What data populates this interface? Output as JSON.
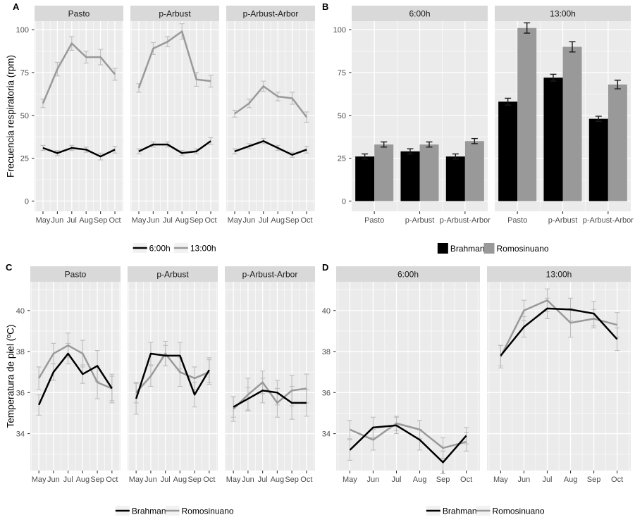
{
  "panels": {
    "a": {
      "letter": "A",
      "y_axis_label": "Frecuencia respiratoria (rpm)"
    },
    "b": {
      "letter": "B"
    },
    "c": {
      "letter": "C",
      "y_axis_label": "Temperatura de piel (ºC)"
    },
    "d": {
      "letter": "D"
    }
  },
  "colors": {
    "black_series": "#000000",
    "gray_series": "#999999",
    "panel_bg": "#EBEBEB",
    "strip_bg": "#D9D9D9",
    "gridline": "#FFFFFF",
    "tick_text": "#4D4D4D",
    "strip_text": "#1A1A1A",
    "errbar_line_charts": "#BDBDBD",
    "errbar_bar_charts": "#1A1A1A",
    "legend_key_bg": "#F2F2F2",
    "axis_tick": "#333333"
  },
  "chart_data": [
    {
      "panel": "A",
      "type": "line",
      "title": "",
      "ylabel": "Frecuencia respiratoria (rpm)",
      "x": [
        "May",
        "Jun",
        "Jul",
        "Aug",
        "Sep",
        "Oct"
      ],
      "yticks": [
        0,
        25,
        50,
        75,
        100
      ],
      "ylim": [
        -6,
        105
      ],
      "grid": true,
      "legend_position": "bottom",
      "legend": [
        "6:00h",
        "13:00h"
      ],
      "legend_colors": [
        "#000000",
        "#999999"
      ],
      "facets": [
        {
          "label": "Pasto",
          "series": [
            {
              "name": "6:00h",
              "color": "#000000",
              "values": [
                31,
                28,
                31,
                30,
                26,
                30
              ],
              "err": [
                1.5,
                1.5,
                1.5,
                1.5,
                2,
                2
              ]
            },
            {
              "name": "13:00h",
              "color": "#999999",
              "values": [
                57,
                77,
                92,
                84,
                84,
                74
              ],
              "err": [
                2.5,
                4,
                4,
                3.5,
                4.5,
                3.5
              ]
            }
          ]
        },
        {
          "label": "p-Arbust",
          "series": [
            {
              "name": "6:00h",
              "color": "#000000",
              "values": [
                29,
                33,
                33,
                28,
                29,
                35
              ],
              "err": [
                1.5,
                1.5,
                1.5,
                1.5,
                1.5,
                2
              ]
            },
            {
              "name": "13:00h",
              "color": "#999999",
              "values": [
                66,
                89,
                93,
                99,
                71,
                70
              ],
              "err": [
                2.5,
                3.5,
                3,
                4.5,
                4,
                3.5
              ]
            }
          ]
        },
        {
          "label": "p-Arbust-Arbor",
          "series": [
            {
              "name": "6:00h",
              "color": "#000000",
              "values": [
                29,
                32,
                35,
                31,
                27,
                30
              ],
              "err": [
                1.5,
                1.5,
                1.5,
                1.5,
                1.5,
                2
              ]
            },
            {
              "name": "13:00h",
              "color": "#999999",
              "values": [
                51,
                57,
                67,
                61,
                60,
                49
              ],
              "err": [
                2,
                2.5,
                3,
                2.5,
                3.5,
                3
              ]
            }
          ]
        }
      ]
    },
    {
      "panel": "B",
      "type": "bar",
      "title": "",
      "ylabel": "",
      "categories": [
        "Pasto",
        "p-Arbust",
        "p-Arbust-Arbor"
      ],
      "yticks": [
        0,
        25,
        50,
        75,
        100
      ],
      "ylim": [
        -6,
        105
      ],
      "grid": true,
      "legend_position": "bottom",
      "legend": [
        "Brahman",
        "Romosinuano"
      ],
      "legend_colors": [
        "#000000",
        "#999999"
      ],
      "facets": [
        {
          "label": "6:00h",
          "series": [
            {
              "name": "Brahman",
              "color": "#000000",
              "values": [
                26,
                29,
                26
              ],
              "err": [
                1.5,
                1.5,
                1.5
              ]
            },
            {
              "name": "Romosinuano",
              "color": "#999999",
              "values": [
                33,
                33,
                35
              ],
              "err": [
                1.5,
                1.5,
                1.5
              ]
            }
          ]
        },
        {
          "label": "13:00h",
          "series": [
            {
              "name": "Brahman",
              "color": "#000000",
              "values": [
                58,
                72,
                48
              ],
              "err": [
                2,
                2,
                1.5
              ]
            },
            {
              "name": "Romosinuano",
              "color": "#999999",
              "values": [
                101,
                90,
                68
              ],
              "err": [
                3,
                3,
                2.5
              ]
            }
          ]
        }
      ]
    },
    {
      "panel": "C",
      "type": "line",
      "title": "",
      "ylabel": "Temperatura de piel (ºC)",
      "x": [
        "May",
        "Jun",
        "Jul",
        "Aug",
        "Sep",
        "Oct"
      ],
      "yticks": [
        34,
        36,
        38,
        40
      ],
      "ylim": [
        32.2,
        41.4
      ],
      "grid": true,
      "legend_position": "bottom",
      "legend": [
        "Brahman",
        "Romosinuano"
      ],
      "legend_colors": [
        "#000000",
        "#999999"
      ],
      "facets": [
        {
          "label": "Pasto",
          "series": [
            {
              "name": "Brahman",
              "color": "#000000",
              "values": [
                35.4,
                37.0,
                37.9,
                36.9,
                37.3,
                36.2
              ],
              "err": [
                0.5,
                0.4,
                0.5,
                0.45,
                0.75,
                0.6
              ]
            },
            {
              "name": "Romosinuano",
              "color": "#999999",
              "values": [
                36.7,
                37.9,
                38.3,
                37.9,
                36.5,
                36.2
              ],
              "err": [
                0.55,
                0.5,
                0.6,
                0.65,
                0.8,
                0.7
              ]
            }
          ]
        },
        {
          "label": "p-Arbust",
          "series": [
            {
              "name": "Brahman",
              "color": "#000000",
              "values": [
                35.7,
                37.9,
                37.8,
                37.8,
                35.9,
                37.1
              ],
              "err": [
                0.75,
                0.55,
                0.5,
                0.65,
                0.6,
                0.6
              ]
            },
            {
              "name": "Romosinuano",
              "color": "#999999",
              "values": [
                36.0,
                36.8,
                37.9,
                37.0,
                36.7,
                37.0
              ],
              "err": [
                0.5,
                0.5,
                0.6,
                0.7,
                0.55,
                0.6
              ]
            }
          ]
        },
        {
          "label": "p-Arbust-Arbor",
          "series": [
            {
              "name": "Brahman",
              "color": "#000000",
              "values": [
                35.3,
                35.7,
                36.1,
                36.0,
                35.5,
                35.5
              ],
              "err": [
                0.5,
                0.55,
                0.6,
                0.6,
                0.8,
                0.65
              ]
            },
            {
              "name": "Romosinuano",
              "color": "#999999",
              "values": [
                35.2,
                35.9,
                36.5,
                35.5,
                36.1,
                36.2
              ],
              "err": [
                0.6,
                0.8,
                0.55,
                0.7,
                0.75,
                0.7
              ]
            }
          ]
        }
      ]
    },
    {
      "panel": "D",
      "type": "line",
      "title": "",
      "ylabel": "",
      "x": [
        "May",
        "Jun",
        "Jul",
        "Aug",
        "Sep",
        "Oct"
      ],
      "yticks": [
        34,
        36,
        38,
        40
      ],
      "ylim": [
        32.2,
        41.4
      ],
      "grid": true,
      "legend_position": "bottom",
      "legend": [
        "Brahman",
        "Romosinuano"
      ],
      "legend_colors": [
        "#000000",
        "#999999"
      ],
      "facets": [
        {
          "label": "6:00h",
          "series": [
            {
              "name": "Brahman",
              "color": "#000000",
              "values": [
                33.2,
                34.3,
                34.4,
                33.7,
                32.6,
                33.9
              ],
              "err": [
                0.5,
                0.5,
                0.4,
                0.5,
                0.55,
                0.4
              ]
            },
            {
              "name": "Romosinuano",
              "color": "#999999",
              "values": [
                34.2,
                33.7,
                34.5,
                34.2,
                33.3,
                33.6
              ],
              "err": [
                0.45,
                0.5,
                0.35,
                0.45,
                0.5,
                0.45
              ]
            }
          ]
        },
        {
          "label": "13:00h",
          "series": [
            {
              "name": "Brahman",
              "color": "#000000",
              "values": [
                37.8,
                39.2,
                40.1,
                40.05,
                39.85,
                38.6
              ],
              "err": [
                0.5,
                0.5,
                0.5,
                0.55,
                0.6,
                0.55
              ]
            },
            {
              "name": "Romosinuano",
              "color": "#999999",
              "values": [
                37.75,
                40.0,
                40.5,
                39.4,
                39.6,
                39.3
              ],
              "err": [
                0.55,
                0.5,
                0.55,
                0.7,
                0.45,
                0.6
              ]
            }
          ]
        }
      ]
    }
  ]
}
